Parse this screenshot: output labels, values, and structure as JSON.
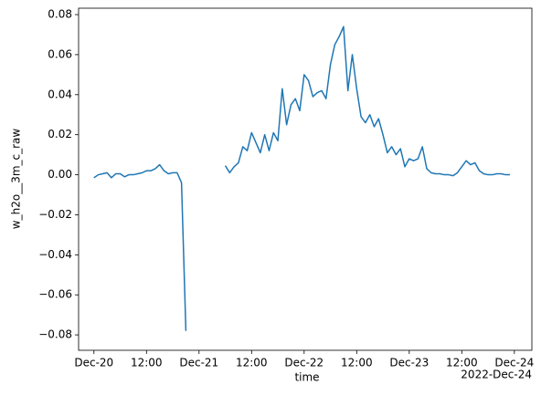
{
  "chart_data": {
    "type": "line",
    "ylabel": "w_h2o__3m_c_raw",
    "xlabel": "time",
    "offset_text": "2022-Dec-24",
    "x": [
      "2022-12-20T00:00",
      "2022-12-20T01:00",
      "2022-12-20T02:00",
      "2022-12-20T03:00",
      "2022-12-20T04:00",
      "2022-12-20T05:00",
      "2022-12-20T06:00",
      "2022-12-20T07:00",
      "2022-12-20T08:00",
      "2022-12-20T09:00",
      "2022-12-20T10:00",
      "2022-12-20T11:00",
      "2022-12-20T12:00",
      "2022-12-20T13:00",
      "2022-12-20T14:00",
      "2022-12-20T15:00",
      "2022-12-20T16:00",
      "2022-12-20T17:00",
      "2022-12-20T18:00",
      "2022-12-20T19:00",
      "2022-12-20T20:00",
      "2022-12-20T21:00",
      "2022-12-20T22:00",
      "2022-12-20T23:00",
      "2022-12-21T00:00",
      "2022-12-21T01:00",
      "2022-12-21T02:00",
      "2022-12-21T03:00",
      "2022-12-21T04:00",
      "2022-12-21T05:00",
      "2022-12-21T06:00",
      "2022-12-21T07:00",
      "2022-12-21T08:00",
      "2022-12-21T09:00",
      "2022-12-21T10:00",
      "2022-12-21T11:00",
      "2022-12-21T12:00",
      "2022-12-21T13:00",
      "2022-12-21T14:00",
      "2022-12-21T15:00",
      "2022-12-21T16:00",
      "2022-12-21T17:00",
      "2022-12-21T18:00",
      "2022-12-21T19:00",
      "2022-12-21T20:00",
      "2022-12-21T21:00",
      "2022-12-21T22:00",
      "2022-12-21T23:00",
      "2022-12-22T00:00",
      "2022-12-22T01:00",
      "2022-12-22T02:00",
      "2022-12-22T03:00",
      "2022-12-22T04:00",
      "2022-12-22T05:00",
      "2022-12-22T06:00",
      "2022-12-22T07:00",
      "2022-12-22T08:00",
      "2022-12-22T09:00",
      "2022-12-22T10:00",
      "2022-12-22T11:00",
      "2022-12-22T12:00",
      "2022-12-22T13:00",
      "2022-12-22T14:00",
      "2022-12-22T15:00",
      "2022-12-22T16:00",
      "2022-12-22T17:00",
      "2022-12-22T18:00",
      "2022-12-22T19:00",
      "2022-12-22T20:00",
      "2022-12-22T21:00",
      "2022-12-22T22:00",
      "2022-12-22T23:00",
      "2022-12-23T00:00",
      "2022-12-23T01:00",
      "2022-12-23T02:00",
      "2022-12-23T03:00",
      "2022-12-23T04:00",
      "2022-12-23T05:00",
      "2022-12-23T06:00",
      "2022-12-23T07:00",
      "2022-12-23T08:00",
      "2022-12-23T09:00",
      "2022-12-23T10:00",
      "2022-12-23T11:00",
      "2022-12-23T12:00",
      "2022-12-23T13:00",
      "2022-12-23T14:00",
      "2022-12-23T15:00",
      "2022-12-23T16:00",
      "2022-12-23T17:00",
      "2022-12-23T18:00",
      "2022-12-23T19:00",
      "2022-12-23T20:00",
      "2022-12-23T21:00",
      "2022-12-23T22:00",
      "2022-12-23T23:00"
    ],
    "series": [
      {
        "color": "#1f77b4",
        "values": [
          -0.0015,
          0,
          0.0005,
          0.001,
          -0.0015,
          0.0005,
          0.0005,
          -0.001,
          0,
          0,
          0.0005,
          0.001,
          0.002,
          0.002,
          0.003,
          0.005,
          0.002,
          0.0005,
          0.001,
          0.001,
          -0.004,
          -0.078,
          null,
          null,
          null,
          null,
          null,
          null,
          null,
          null,
          0.0045,
          0.001,
          0.004,
          0.006,
          0.014,
          0.012,
          0.021,
          0.016,
          0.011,
          0.02,
          0.012,
          0.021,
          0.017,
          0.043,
          0.025,
          0.035,
          0.038,
          0.032,
          0.05,
          0.047,
          0.039,
          0.041,
          0.042,
          0.038,
          0.055,
          0.065,
          0.069,
          0.074,
          0.042,
          0.06,
          0.043,
          0.029,
          0.026,
          0.03,
          0.024,
          0.028,
          0.02,
          0.011,
          0.014,
          0.01,
          0.013,
          0.004,
          0.008,
          0.007,
          0.008,
          0.014,
          0.003,
          0.001,
          0.0005,
          0.0005,
          0,
          0,
          -0.0005,
          0.001,
          0.004,
          0.007,
          0.005,
          0.006,
          0.002,
          0.0005,
          0,
          0,
          0.0005,
          0.0005,
          0,
          0
        ]
      }
    ],
    "xlim": [
      "2022-12-19T20:30",
      "2022-12-24T04:00"
    ],
    "xticks": [
      {
        "value": "2022-12-20T00:00",
        "label": "Dec-20"
      },
      {
        "value": "2022-12-20T12:00",
        "label": "12:00"
      },
      {
        "value": "2022-12-21T00:00",
        "label": "Dec-21"
      },
      {
        "value": "2022-12-21T12:00",
        "label": "12:00"
      },
      {
        "value": "2022-12-22T00:00",
        "label": "Dec-22"
      },
      {
        "value": "2022-12-22T12:00",
        "label": "12:00"
      },
      {
        "value": "2022-12-23T00:00",
        "label": "Dec-23"
      },
      {
        "value": "2022-12-23T12:00",
        "label": "12:00"
      },
      {
        "value": "2022-12-24T00:00",
        "label": "Dec-24"
      }
    ],
    "ylim": [
      -0.0877,
      0.0832
    ],
    "yticks": [
      {
        "value": -0.08,
        "label": "−0.08"
      },
      {
        "value": -0.06,
        "label": "−0.06"
      },
      {
        "value": -0.04,
        "label": "−0.04"
      },
      {
        "value": -0.02,
        "label": "−0.02"
      },
      {
        "value": 0,
        "label": "0.00"
      },
      {
        "value": 0.02,
        "label": "0.02"
      },
      {
        "value": 0.04,
        "label": "0.04"
      },
      {
        "value": 0.06,
        "label": "0.06"
      },
      {
        "value": 0.08,
        "label": "0.08"
      }
    ],
    "grid": false
  }
}
